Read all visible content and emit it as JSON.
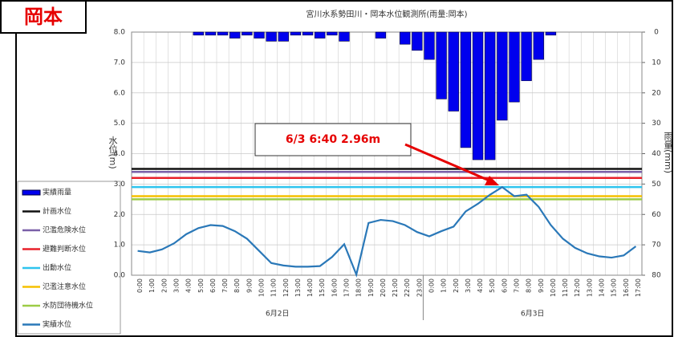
{
  "chart_data": {
    "type": "combo",
    "badge": "岡本",
    "title": "宮川水系勢田川・岡本水位観測所(雨量:岡本)",
    "y_label": "水位(m)",
    "y2_label": "雨量(mm)",
    "annotation": "6/3 6:40 2.96m",
    "categories": [
      "0:00",
      "1:00",
      "2:00",
      "3:00",
      "4:00",
      "5:00",
      "6:00",
      "7:00",
      "8:00",
      "9:00",
      "10:00",
      "11:00",
      "12:00",
      "13:00",
      "14:00",
      "15:00",
      "16:00",
      "17:00",
      "18:00",
      "19:00",
      "20:00",
      "21:00",
      "22:00",
      "23:00",
      "0:00",
      "1:00",
      "2:00",
      "3:00",
      "4:00",
      "5:00",
      "6:00",
      "7:00",
      "8:00",
      "9:00",
      "10:00",
      "11:00",
      "12:00",
      "13:00",
      "14:00",
      "15:00",
      "16:00",
      "17:00"
    ],
    "day_labels": [
      "6月2日",
      "6月3日"
    ],
    "ylim": [
      0,
      8
    ],
    "yticks": [
      {
        "value": 0,
        "label": "0.0"
      },
      {
        "value": 1,
        "label": "1.0"
      },
      {
        "value": 2,
        "label": "2.0"
      },
      {
        "value": 3,
        "label": "3.0"
      },
      {
        "value": 4,
        "label": "4.0"
      },
      {
        "value": 5,
        "label": "5.0"
      },
      {
        "value": 6,
        "label": "6.0"
      },
      {
        "value": 7,
        "label": "7.0"
      },
      {
        "value": 8,
        "label": "8.0"
      }
    ],
    "y2lim": [
      0,
      80
    ],
    "y2ticks": [
      0,
      10,
      20,
      30,
      40,
      50,
      60,
      70,
      80
    ],
    "y2_inverted": true,
    "grid": true,
    "series": [
      {
        "name": "実績雨量",
        "type": "bar",
        "axis": "y2",
        "color": "#0000ee",
        "values": [
          0,
          0,
          0,
          0,
          0,
          1,
          1,
          1,
          2,
          1,
          2,
          3,
          3,
          1,
          1,
          2,
          1,
          3,
          0,
          0,
          2,
          0,
          4,
          6,
          9,
          22,
          26,
          38,
          42,
          42,
          29,
          23,
          16,
          9,
          1,
          0,
          0,
          0,
          0,
          0,
          0,
          0
        ]
      },
      {
        "name": "実績水位",
        "type": "line",
        "color": "#2a78b8",
        "values": [
          0.8,
          0.75,
          0.85,
          1.05,
          1.35,
          1.55,
          1.65,
          1.62,
          1.45,
          1.2,
          0.8,
          0.4,
          0.32,
          0.28,
          0.28,
          0.3,
          0.6,
          1.02,
          0.02,
          1.72,
          1.82,
          1.78,
          1.65,
          1.42,
          1.28,
          1.45,
          1.6,
          2.1,
          2.35,
          2.65,
          2.9,
          2.6,
          2.65,
          2.25,
          1.65,
          1.2,
          0.9,
          0.72,
          0.62,
          0.58,
          0.65,
          0.95
        ]
      }
    ],
    "reference_lines": [
      {
        "name": "計画水位",
        "color": "#111111",
        "value": 3.5
      },
      {
        "name": "氾濫危険水位",
        "color": "#7a5fa8",
        "value": 3.4
      },
      {
        "name": "避難判断水位",
        "color": "#e8202a",
        "value": 3.2
      },
      {
        "name": "出動水位",
        "color": "#2ec4ee",
        "value": 2.9
      },
      {
        "name": "氾濫注意水位",
        "color": "#f5c000",
        "value": 2.6
      },
      {
        "name": "水防団待機水位",
        "color": "#9ccc45",
        "value": 2.5
      }
    ]
  }
}
